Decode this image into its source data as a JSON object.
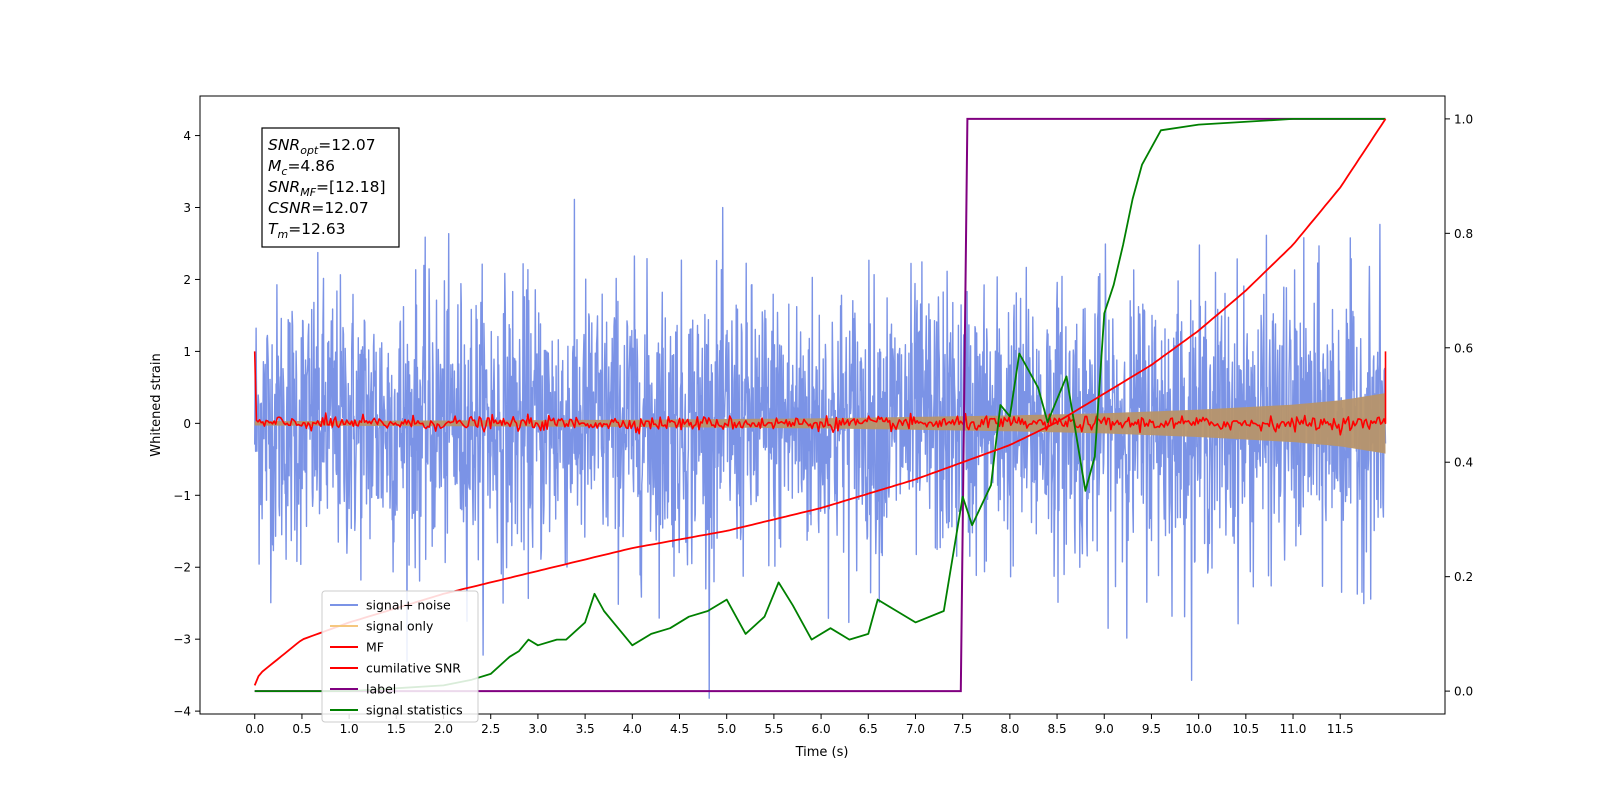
{
  "chart_data": {
    "type": "line",
    "xlabel": "Time (s)",
    "ylabel": "Whitened strain",
    "xlim": [
      -0.58,
      12.61
    ],
    "ylim": [
      -4.04,
      4.55
    ],
    "y2lim": [
      -0.04,
      1.04
    ],
    "xticks": [
      "0.0",
      "0.5",
      "1.0",
      "1.5",
      "2.0",
      "2.5",
      "3.0",
      "3.5",
      "4.0",
      "4.5",
      "5.0",
      "5.5",
      "6.0",
      "6.5",
      "7.0",
      "7.5",
      "8.0",
      "8.5",
      "9.0",
      "9.5",
      "10.0",
      "10.5",
      "11.0",
      "11.5"
    ],
    "yticks": [
      "4",
      "3",
      "2",
      "1",
      "0",
      "−1",
      "−2",
      "−3",
      "−4"
    ],
    "y2ticks": [
      "1.0",
      "0.8",
      "0.6",
      "0.4",
      "0.2",
      "0.0"
    ],
    "grid": false,
    "legend_position": "lower-left",
    "annotation": {
      "lines": [
        {
          "sym": "SNR",
          "sub": "opt",
          "val": "=12.07"
        },
        {
          "sym": "M",
          "sub": "c",
          "val": "=4.86"
        },
        {
          "sym": "SNR",
          "sub": "MF",
          "val": "=[12.18]"
        },
        {
          "sym": "CSNR",
          "sub": "",
          "val": "=12.07"
        },
        {
          "sym": "T",
          "sub": "m",
          "val": "=12.63"
        }
      ]
    },
    "series": [
      {
        "name": "signal+ noise",
        "color": "#7b93e6",
        "axis": "left",
        "kind": "noise",
        "noise_sigma": 1.0,
        "noise_max_abs": 4.2,
        "x_start": 0.0,
        "x_end": 11.98
      },
      {
        "name": "signal only",
        "color": "#f5c77e",
        "axis": "left",
        "kind": "envelope",
        "x": [
          0.0,
          2.0,
          4.0,
          6.0,
          7.0,
          8.0,
          9.0,
          10.0,
          11.0,
          11.5,
          11.98
        ],
        "amplitude": [
          0.03,
          0.04,
          0.05,
          0.07,
          0.09,
          0.11,
          0.14,
          0.19,
          0.26,
          0.32,
          0.42
        ]
      },
      {
        "name": "MF",
        "color": "#ff0000",
        "axis": "left",
        "kind": "mf_noise",
        "start_value": 1.0,
        "end_value": 1.0,
        "noise_amplitude": 0.08
      },
      {
        "name": "cumilative SNR",
        "color": "#ff0000",
        "axis": "right",
        "x": [
          0.0,
          0.05,
          0.5,
          1.0,
          2.0,
          3.0,
          4.0,
          5.0,
          6.0,
          7.0,
          7.5,
          8.0,
          8.5,
          9.0,
          9.5,
          10.0,
          10.5,
          11.0,
          11.5,
          11.98
        ],
        "y": [
          0.01,
          0.03,
          0.09,
          0.12,
          0.17,
          0.21,
          0.25,
          0.28,
          0.32,
          0.37,
          0.4,
          0.43,
          0.47,
          0.52,
          0.57,
          0.63,
          0.7,
          0.78,
          0.88,
          1.0
        ]
      },
      {
        "name": "label",
        "color": "#800080",
        "axis": "right",
        "x": [
          0.0,
          7.48,
          7.55,
          11.98
        ],
        "y": [
          0.0,
          0.0,
          1.0,
          1.0
        ]
      },
      {
        "name": "signal statistics",
        "color": "#008000",
        "axis": "right",
        "x": [
          0.0,
          1.0,
          2.0,
          2.3,
          2.5,
          2.7,
          2.8,
          2.9,
          3.0,
          3.2,
          3.3,
          3.5,
          3.6,
          3.7,
          3.8,
          4.0,
          4.2,
          4.4,
          4.6,
          4.8,
          5.0,
          5.2,
          5.4,
          5.55,
          5.7,
          5.9,
          6.1,
          6.3,
          6.5,
          6.6,
          6.8,
          7.0,
          7.3,
          7.5,
          7.6,
          7.8,
          7.9,
          8.0,
          8.1,
          8.3,
          8.4,
          8.6,
          8.8,
          8.9,
          9.0,
          9.1,
          9.2,
          9.3,
          9.4,
          9.6,
          10.0,
          11.0,
          11.98
        ],
        "y": [
          0.0,
          0.0,
          0.01,
          0.02,
          0.03,
          0.06,
          0.07,
          0.09,
          0.08,
          0.09,
          0.09,
          0.12,
          0.17,
          0.14,
          0.12,
          0.08,
          0.1,
          0.11,
          0.13,
          0.14,
          0.16,
          0.1,
          0.13,
          0.19,
          0.15,
          0.09,
          0.11,
          0.09,
          0.1,
          0.16,
          0.14,
          0.12,
          0.14,
          0.34,
          0.29,
          0.36,
          0.5,
          0.48,
          0.59,
          0.53,
          0.47,
          0.55,
          0.35,
          0.41,
          0.66,
          0.71,
          0.78,
          0.86,
          0.92,
          0.98,
          0.99,
          1.0,
          1.0
        ]
      }
    ]
  }
}
